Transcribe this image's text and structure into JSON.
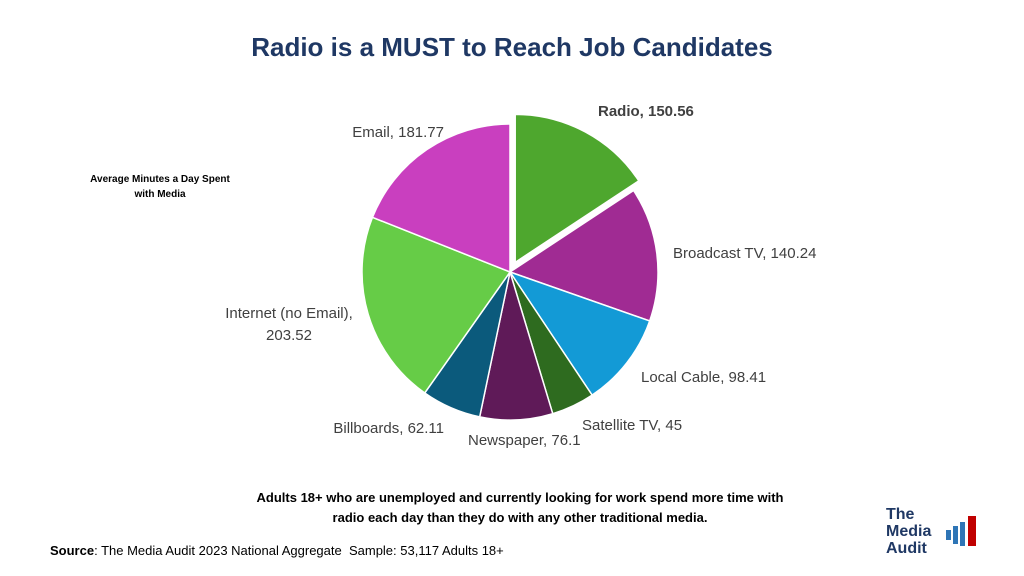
{
  "chart_data": {
    "type": "pie",
    "title": "Radio is a MUST to Reach Job Candidates",
    "subtitle": "Average Minutes a Day Spent with Media",
    "values": [
      150.56,
      140.24,
      98.41,
      45,
      76.1,
      62.11,
      203.52,
      181.77
    ],
    "value_labels": [
      "Radio, 150.56",
      "Broadcast TV, 140.24",
      "Local Cable, 98.41",
      "Satellite TV, 45",
      "Newspaper, 76.1",
      "Billboards, 62.11",
      "Internet (no Email), 203.52",
      "Email, 181.77"
    ],
    "colors": [
      "#4ea72e",
      "#a02b93",
      "#139ad6",
      "#2e6b1f",
      "#5f1a58",
      "#0b5a7c",
      "#66cc47",
      "#c93fbf"
    ],
    "exploded": [
      0
    ],
    "annotation": "Adults 18+ who are unemployed and currently looking for work spend more time with radio each day than they do with any other traditional media.",
    "source_label": "Source",
    "source_text": ": The Media Audit 2023 National Aggregate  Sample: 53,117 Adults 18+",
    "logo": [
      "The",
      "Media",
      "Audit"
    ]
  }
}
